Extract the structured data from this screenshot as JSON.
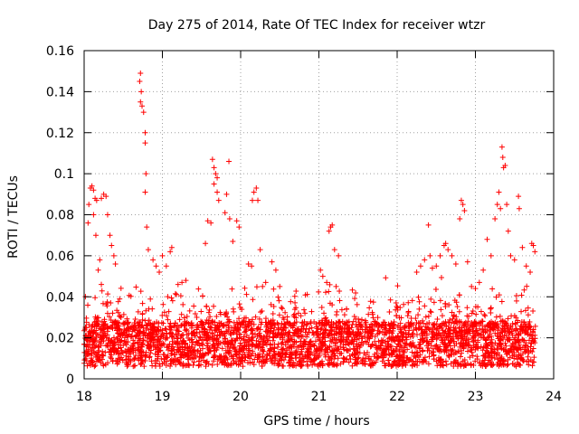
{
  "chart_data": {
    "type": "scatter",
    "title": "Day 275 of 2014, Rate Of TEC Index for receiver wtzr",
    "xlabel": "GPS time / hours",
    "ylabel": "ROTI / TECUs",
    "xlim": [
      18,
      24
    ],
    "ylim": [
      0,
      0.16
    ],
    "xticks": [
      18,
      19,
      20,
      21,
      22,
      23,
      24
    ],
    "yticks": [
      0,
      0.02,
      0.04,
      0.06,
      0.08,
      0.1,
      0.12,
      0.14,
      0.16
    ],
    "ytick_labels": [
      "0",
      "0.02",
      "0.04",
      "0.06",
      "0.08",
      "0.1",
      "0.12",
      "0.14",
      "0.16"
    ],
    "xtick_labels": [
      "18",
      "19",
      "20",
      "21",
      "22",
      "23",
      "24"
    ],
    "grid": true,
    "marker": "+",
    "color": "#ff0000",
    "x_range_of_data": [
      18.0,
      23.77
    ],
    "series": [
      {
        "name": "wtzr",
        "points": [
          [
            18.05,
            0.076
          ],
          [
            18.08,
            0.093
          ],
          [
            18.1,
            0.094
          ],
          [
            18.12,
            0.092
          ],
          [
            18.14,
            0.088
          ],
          [
            18.16,
            0.087
          ],
          [
            18.22,
            0.088
          ],
          [
            18.25,
            0.09
          ],
          [
            18.28,
            0.089
          ],
          [
            18.3,
            0.08
          ],
          [
            18.33,
            0.07
          ],
          [
            18.35,
            0.065
          ],
          [
            18.38,
            0.06
          ],
          [
            18.4,
            0.056
          ],
          [
            18.2,
            0.058
          ],
          [
            18.18,
            0.053
          ],
          [
            18.22,
            0.046
          ],
          [
            18.15,
            0.07
          ],
          [
            18.06,
            0.085
          ],
          [
            18.12,
            0.08
          ],
          [
            18.72,
            0.149
          ],
          [
            18.71,
            0.145
          ],
          [
            18.73,
            0.14
          ],
          [
            18.72,
            0.135
          ],
          [
            18.74,
            0.133
          ],
          [
            18.76,
            0.13
          ],
          [
            18.78,
            0.12
          ],
          [
            18.78,
            0.115
          ],
          [
            18.79,
            0.1
          ],
          [
            18.78,
            0.091
          ],
          [
            18.8,
            0.074
          ],
          [
            18.82,
            0.063
          ],
          [
            18.88,
            0.058
          ],
          [
            18.92,
            0.055
          ],
          [
            18.96,
            0.052
          ],
          [
            19.0,
            0.06
          ],
          [
            19.05,
            0.055
          ],
          [
            19.1,
            0.062
          ],
          [
            19.12,
            0.064
          ],
          [
            19.2,
            0.046
          ],
          [
            19.25,
            0.047
          ],
          [
            19.3,
            0.048
          ],
          [
            19.55,
            0.066
          ],
          [
            19.58,
            0.077
          ],
          [
            19.62,
            0.076
          ],
          [
            19.64,
            0.107
          ],
          [
            19.66,
            0.103
          ],
          [
            19.68,
            0.1
          ],
          [
            19.7,
            0.098
          ],
          [
            19.66,
            0.095
          ],
          [
            19.7,
            0.091
          ],
          [
            19.72,
            0.087
          ],
          [
            19.85,
            0.106
          ],
          [
            19.82,
            0.09
          ],
          [
            19.8,
            0.081
          ],
          [
            19.86,
            0.078
          ],
          [
            19.95,
            0.077
          ],
          [
            19.98,
            0.074
          ],
          [
            19.9,
            0.067
          ],
          [
            20.1,
            0.056
          ],
          [
            20.14,
            0.055
          ],
          [
            20.15,
            0.087
          ],
          [
            20.17,
            0.091
          ],
          [
            20.2,
            0.093
          ],
          [
            20.22,
            0.087
          ],
          [
            20.25,
            0.063
          ],
          [
            20.28,
            0.045
          ],
          [
            20.32,
            0.047
          ],
          [
            20.4,
            0.057
          ],
          [
            20.45,
            0.053
          ],
          [
            20.5,
            0.045
          ],
          [
            21.02,
            0.053
          ],
          [
            21.05,
            0.05
          ],
          [
            21.1,
            0.047
          ],
          [
            21.13,
            0.072
          ],
          [
            21.15,
            0.074
          ],
          [
            21.17,
            0.075
          ],
          [
            21.2,
            0.063
          ],
          [
            21.25,
            0.06
          ],
          [
            21.22,
            0.045
          ],
          [
            22.25,
            0.052
          ],
          [
            22.3,
            0.055
          ],
          [
            22.35,
            0.058
          ],
          [
            22.4,
            0.075
          ],
          [
            22.42,
            0.06
          ],
          [
            22.45,
            0.054
          ],
          [
            22.5,
            0.055
          ],
          [
            22.55,
            0.06
          ],
          [
            22.6,
            0.065
          ],
          [
            22.62,
            0.066
          ],
          [
            22.65,
            0.063
          ],
          [
            22.7,
            0.06
          ],
          [
            22.75,
            0.056
          ],
          [
            22.8,
            0.078
          ],
          [
            22.82,
            0.087
          ],
          [
            22.84,
            0.085
          ],
          [
            22.86,
            0.082
          ],
          [
            22.9,
            0.057
          ],
          [
            22.95,
            0.045
          ],
          [
            23.0,
            0.044
          ],
          [
            23.05,
            0.047
          ],
          [
            23.1,
            0.053
          ],
          [
            23.15,
            0.068
          ],
          [
            23.2,
            0.06
          ],
          [
            23.25,
            0.078
          ],
          [
            23.28,
            0.085
          ],
          [
            23.3,
            0.091
          ],
          [
            23.32,
            0.083
          ],
          [
            23.34,
            0.113
          ],
          [
            23.35,
            0.108
          ],
          [
            23.36,
            0.103
          ],
          [
            23.38,
            0.104
          ],
          [
            23.4,
            0.085
          ],
          [
            23.42,
            0.072
          ],
          [
            23.45,
            0.06
          ],
          [
            23.5,
            0.058
          ],
          [
            23.55,
            0.089
          ],
          [
            23.56,
            0.083
          ],
          [
            23.6,
            0.064
          ],
          [
            23.65,
            0.055
          ],
          [
            23.7,
            0.052
          ],
          [
            23.72,
            0.066
          ],
          [
            23.74,
            0.065
          ],
          [
            23.76,
            0.062
          ]
        ]
      }
    ]
  }
}
